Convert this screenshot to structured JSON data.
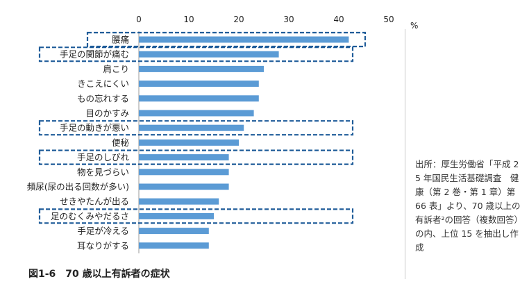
{
  "chart_data": {
    "type": "bar",
    "orientation": "horizontal",
    "categories": [
      "腰痛",
      "手足の関節が痛む",
      "肩こり",
      "きこえにくい",
      "もの忘れする",
      "目のかすみ",
      "手足の動きが悪い",
      "便秘",
      "手足のしびれ",
      "物を見づらい",
      "頻尿(尿の出る回数が多い)",
      "せきやたんが出る",
      "足のむくみやだるさ",
      "手足が冷える",
      "耳なりがする"
    ],
    "values": [
      42,
      28,
      25,
      24,
      24,
      23,
      21,
      20,
      18,
      18,
      18,
      16,
      15,
      14,
      14
    ],
    "highlighted": [
      "腰痛",
      "手足の関節が痛む",
      "手足の動きが悪い",
      "手足のしびれ",
      "足のむくみやだるさ"
    ],
    "xlim": [
      0,
      50
    ],
    "xticks": [
      0,
      10,
      20,
      30,
      40,
      50
    ],
    "unit": "%",
    "bar_color": "#5b9bd5",
    "highlight_color": "#1f5c99",
    "grid": false
  },
  "caption": "図1-6　70 歳以上有訴者の症状",
  "source_note": "出所：厚生労働省「平成 25 年国民生活基礎調査　健康（第 2 巻・第 1 章）第 66 表」より、70 歳以上の有訴者²の回答（複数回答）の内、上位 15 を抽出し作成"
}
